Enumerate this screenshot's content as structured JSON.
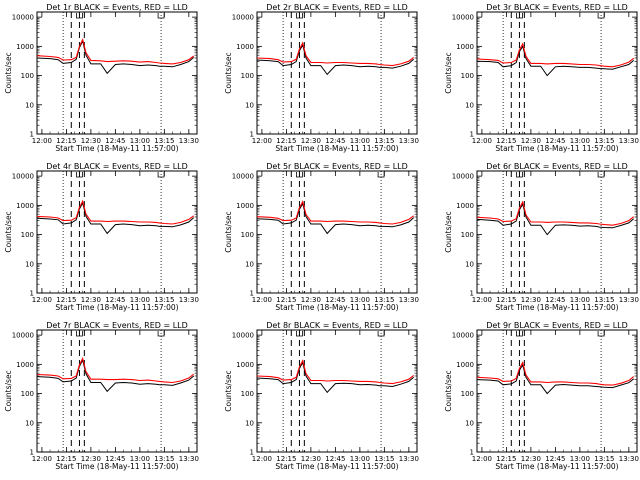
{
  "x_tick_labels": [
    "12:00",
    "12:15",
    "12:30",
    "12:45",
    "13:00",
    "13:15",
    "13:30"
  ],
  "y_tick_labels": [
    "1",
    "10",
    "100",
    "1000",
    "10000"
  ],
  "ylabel": "Counts/sec",
  "xlabel": "Start Time (18-May-11 11:57:00)",
  "colors": {
    "events": "#000000",
    "lld": "#ff0000"
  },
  "chart_data": [
    {
      "type": "line",
      "title": "Det 1r BLACK = Events, RED = LLD",
      "x": [
        "11:57",
        "12:05",
        "12:10",
        "12:13",
        "12:18",
        "12:21",
        "12:23",
        "12:25",
        "12:27",
        "12:30",
        "12:36",
        "12:40",
        "12:45",
        "12:50",
        "12:55",
        "13:00",
        "13:05",
        "13:10",
        "13:12",
        "13:15",
        "13:20",
        "13:25",
        "13:30",
        "13:33"
      ],
      "ylim": [
        1,
        15000
      ],
      "yscale": "log",
      "series": [
        {
          "name": "BLACK = Events",
          "values": [
            400,
            380,
            350,
            260,
            280,
            360,
            900,
            1500,
            500,
            250,
            250,
            120,
            240,
            250,
            240,
            220,
            230,
            220,
            210,
            210,
            200,
            240,
            300,
            420
          ]
        },
        {
          "name": "RED = LLD",
          "values": [
            480,
            450,
            420,
            340,
            350,
            420,
            1000,
            1700,
            600,
            330,
            320,
            300,
            310,
            320,
            310,
            290,
            300,
            280,
            270,
            260,
            250,
            280,
            350,
            470
          ]
        }
      ],
      "vlines_dotted": [
        "12:13",
        "13:13"
      ],
      "vlines_dashed": [
        "12:18",
        "12:23",
        "12:26"
      ]
    },
    {
      "type": "line",
      "title": "Det 2r BLACK = Events, RED = LLD",
      "x": [
        "11:57",
        "12:05",
        "12:10",
        "12:13",
        "12:18",
        "12:21",
        "12:23",
        "12:25",
        "12:27",
        "12:30",
        "12:36",
        "12:40",
        "12:45",
        "12:50",
        "12:55",
        "13:00",
        "13:05",
        "13:10",
        "13:12",
        "13:15",
        "13:20",
        "13:25",
        "13:30",
        "13:33"
      ],
      "ylim": [
        1,
        15000
      ],
      "yscale": "log",
      "series": [
        {
          "name": "BLACK = Events",
          "values": [
            340,
            320,
            300,
            220,
            240,
            300,
            700,
            1100,
            400,
            220,
            220,
            110,
            220,
            230,
            220,
            200,
            210,
            200,
            190,
            190,
            180,
            210,
            260,
            360
          ]
        },
        {
          "name": "RED = LLD",
          "values": [
            400,
            380,
            350,
            290,
            300,
            360,
            800,
            1300,
            480,
            280,
            280,
            270,
            280,
            280,
            270,
            260,
            260,
            250,
            240,
            230,
            220,
            250,
            310,
            420
          ]
        }
      ],
      "vlines_dotted": [
        "12:13",
        "13:13"
      ],
      "vlines_dashed": [
        "12:18",
        "12:23",
        "12:26"
      ]
    },
    {
      "type": "line",
      "title": "Det 3r BLACK = Events, RED = LLD",
      "x": [
        "11:57",
        "12:05",
        "12:10",
        "12:13",
        "12:18",
        "12:21",
        "12:23",
        "12:25",
        "12:27",
        "12:30",
        "12:36",
        "12:40",
        "12:45",
        "12:50",
        "12:55",
        "13:00",
        "13:05",
        "13:10",
        "13:12",
        "13:15",
        "13:20",
        "13:25",
        "13:30",
        "13:33"
      ],
      "ylim": [
        1,
        15000
      ],
      "yscale": "log",
      "series": [
        {
          "name": "BLACK = Events",
          "values": [
            310,
            300,
            280,
            200,
            220,
            280,
            650,
            1000,
            380,
            210,
            210,
            100,
            200,
            210,
            200,
            190,
            190,
            180,
            175,
            170,
            165,
            200,
            240,
            330
          ]
        },
        {
          "name": "RED = LLD",
          "values": [
            370,
            350,
            330,
            270,
            280,
            340,
            750,
            1200,
            450,
            260,
            260,
            250,
            260,
            260,
            250,
            240,
            240,
            230,
            220,
            210,
            200,
            230,
            290,
            390
          ]
        }
      ],
      "vlines_dotted": [
        "12:13",
        "13:13"
      ],
      "vlines_dashed": [
        "12:18",
        "12:23",
        "12:26"
      ]
    },
    {
      "type": "line",
      "title": "Det 4r BLACK = Events, RED = LLD",
      "x": [
        "11:57",
        "12:05",
        "12:10",
        "12:13",
        "12:18",
        "12:21",
        "12:23",
        "12:25",
        "12:27",
        "12:30",
        "12:36",
        "12:40",
        "12:45",
        "12:50",
        "12:55",
        "13:00",
        "13:05",
        "13:10",
        "13:12",
        "13:15",
        "13:20",
        "13:25",
        "13:30",
        "13:33"
      ],
      "ylim": [
        1,
        15000
      ],
      "yscale": "log",
      "series": [
        {
          "name": "BLACK = Events",
          "values": [
            360,
            340,
            320,
            230,
            250,
            320,
            750,
            1200,
            420,
            230,
            230,
            110,
            220,
            230,
            220,
            200,
            210,
            200,
            190,
            190,
            185,
            215,
            270,
            380
          ]
        },
        {
          "name": "RED = LLD",
          "values": [
            420,
            400,
            370,
            300,
            310,
            380,
            850,
            1400,
            500,
            290,
            290,
            280,
            290,
            290,
            280,
            270,
            270,
            260,
            250,
            240,
            230,
            260,
            330,
            440
          ]
        }
      ],
      "vlines_dotted": [
        "12:13",
        "13:13"
      ],
      "vlines_dashed": [
        "12:18",
        "12:23",
        "12:26"
      ]
    },
    {
      "type": "line",
      "title": "Det 5r BLACK = Events, RED = LLD",
      "x": [
        "11:57",
        "12:05",
        "12:10",
        "12:13",
        "12:18",
        "12:21",
        "12:23",
        "12:25",
        "12:27",
        "12:30",
        "12:36",
        "12:40",
        "12:45",
        "12:50",
        "12:55",
        "13:00",
        "13:05",
        "13:10",
        "13:12",
        "13:15",
        "13:20",
        "13:25",
        "13:30",
        "13:33"
      ],
      "ylim": [
        1,
        15000
      ],
      "yscale": "log",
      "series": [
        {
          "name": "BLACK = Events",
          "values": [
            350,
            330,
            310,
            230,
            250,
            310,
            720,
            1150,
            410,
            230,
            230,
            110,
            220,
            230,
            220,
            200,
            210,
            200,
            190,
            190,
            185,
            215,
            270,
            380
          ]
        },
        {
          "name": "RED = LLD",
          "values": [
            410,
            390,
            360,
            300,
            310,
            370,
            830,
            1350,
            490,
            290,
            290,
            280,
            290,
            290,
            280,
            270,
            270,
            260,
            250,
            240,
            230,
            260,
            330,
            440
          ]
        }
      ],
      "vlines_dotted": [
        "12:13",
        "13:13"
      ],
      "vlines_dashed": [
        "12:18",
        "12:23",
        "12:26"
      ]
    },
    {
      "type": "line",
      "title": "Det 6r BLACK = Events, RED = LLD",
      "x": [
        "11:57",
        "12:05",
        "12:10",
        "12:13",
        "12:18",
        "12:21",
        "12:23",
        "12:25",
        "12:27",
        "12:30",
        "12:36",
        "12:40",
        "12:45",
        "12:50",
        "12:55",
        "13:00",
        "13:05",
        "13:10",
        "13:12",
        "13:15",
        "13:20",
        "13:25",
        "13:30",
        "13:33"
      ],
      "ylim": [
        1,
        15000
      ],
      "yscale": "log",
      "series": [
        {
          "name": "BLACK = Events",
          "values": [
            330,
            310,
            290,
            210,
            230,
            290,
            700,
            1100,
            400,
            210,
            210,
            100,
            210,
            215,
            210,
            195,
            200,
            190,
            180,
            175,
            170,
            205,
            250,
            350
          ]
        },
        {
          "name": "RED = LLD",
          "values": [
            390,
            370,
            340,
            280,
            290,
            350,
            800,
            1300,
            470,
            270,
            270,
            260,
            270,
            270,
            260,
            250,
            250,
            240,
            230,
            220,
            210,
            240,
            300,
            410
          ]
        }
      ],
      "vlines_dotted": [
        "12:13",
        "13:13"
      ],
      "vlines_dashed": [
        "12:18",
        "12:23",
        "12:26"
      ]
    },
    {
      "type": "line",
      "title": "Det 7r BLACK = Events, RED = LLD",
      "x": [
        "11:57",
        "12:05",
        "12:10",
        "12:13",
        "12:18",
        "12:21",
        "12:23",
        "12:25",
        "12:27",
        "12:30",
        "12:36",
        "12:40",
        "12:45",
        "12:50",
        "12:55",
        "13:00",
        "13:05",
        "13:10",
        "13:12",
        "13:15",
        "13:20",
        "13:25",
        "13:30",
        "13:33"
      ],
      "ylim": [
        1,
        15000
      ],
      "yscale": "log",
      "series": [
        {
          "name": "BLACK = Events",
          "values": [
            380,
            360,
            330,
            250,
            270,
            340,
            850,
            1400,
            470,
            240,
            240,
            120,
            230,
            240,
            230,
            210,
            220,
            210,
            200,
            200,
            190,
            230,
            290,
            400
          ]
        },
        {
          "name": "RED = LLD",
          "values": [
            450,
            430,
            400,
            320,
            330,
            400,
            950,
            1600,
            560,
            310,
            310,
            300,
            300,
            310,
            300,
            280,
            290,
            270,
            260,
            250,
            240,
            270,
            340,
            460
          ]
        }
      ],
      "vlines_dotted": [
        "12:13",
        "13:13"
      ],
      "vlines_dashed": [
        "12:18",
        "12:23",
        "12:26"
      ]
    },
    {
      "type": "line",
      "title": "Det 8r BLACK = Events, RED = LLD",
      "x": [
        "11:57",
        "12:05",
        "12:10",
        "12:13",
        "12:18",
        "12:21",
        "12:23",
        "12:25",
        "12:27",
        "12:30",
        "12:36",
        "12:40",
        "12:45",
        "12:50",
        "12:55",
        "13:00",
        "13:05",
        "13:10",
        "13:12",
        "13:15",
        "13:20",
        "13:25",
        "13:30",
        "13:33"
      ],
      "ylim": [
        1,
        15000
      ],
      "yscale": "log",
      "series": [
        {
          "name": "BLACK = Events",
          "values": [
            340,
            320,
            300,
            220,
            240,
            300,
            720,
            1150,
            400,
            220,
            220,
            110,
            220,
            225,
            220,
            200,
            205,
            195,
            185,
            185,
            175,
            210,
            260,
            360
          ]
        },
        {
          "name": "RED = LLD",
          "values": [
            400,
            380,
            350,
            290,
            300,
            360,
            820,
            1350,
            480,
            280,
            280,
            270,
            280,
            280,
            270,
            260,
            260,
            250,
            240,
            230,
            220,
            250,
            310,
            420
          ]
        }
      ],
      "vlines_dotted": [
        "12:13",
        "13:13"
      ],
      "vlines_dashed": [
        "12:18",
        "12:23",
        "12:26"
      ]
    },
    {
      "type": "line",
      "title": "Det 9r BLACK = Events, RED = LLD",
      "x": [
        "11:57",
        "12:05",
        "12:10",
        "12:13",
        "12:18",
        "12:21",
        "12:23",
        "12:25",
        "12:27",
        "12:30",
        "12:36",
        "12:40",
        "12:45",
        "12:50",
        "12:55",
        "13:00",
        "13:05",
        "13:10",
        "13:12",
        "13:15",
        "13:20",
        "13:25",
        "13:30",
        "13:33"
      ],
      "ylim": [
        1,
        15000
      ],
      "yscale": "log",
      "series": [
        {
          "name": "BLACK = Events",
          "values": [
            300,
            290,
            270,
            200,
            215,
            270,
            620,
            950,
            360,
            200,
            200,
            100,
            195,
            205,
            195,
            185,
            185,
            175,
            170,
            165,
            160,
            195,
            235,
            320
          ]
        },
        {
          "name": "RED = LLD",
          "values": [
            360,
            340,
            320,
            260,
            270,
            330,
            720,
            1150,
            430,
            250,
            250,
            240,
            250,
            250,
            240,
            230,
            230,
            220,
            210,
            200,
            195,
            225,
            280,
            380
          ]
        }
      ],
      "vlines_dotted": [
        "12:13",
        "13:13"
      ],
      "vlines_dashed": [
        "12:18",
        "12:23",
        "12:26"
      ]
    }
  ]
}
